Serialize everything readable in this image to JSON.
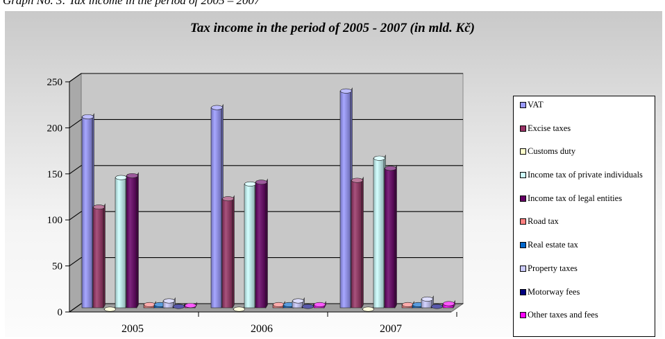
{
  "caption": "Graph No. 3: Tax income in the period of 2005 – 2007",
  "chart_data": {
    "type": "bar",
    "title": "Tax income in the period of 2005 - 2007 (in mld. Kč)",
    "xlabel": "",
    "ylabel": "",
    "ylim": [
      0,
      250
    ],
    "yticks": [
      "0",
      "50",
      "100",
      "150",
      "200",
      "250"
    ],
    "grid": true,
    "legend_position": "right",
    "categories": [
      "2005",
      "2006",
      "2007"
    ],
    "series": [
      {
        "name": "VAT",
        "color": "#9999ff",
        "values": [
          209,
          219,
          237
        ]
      },
      {
        "name": "Excise taxes",
        "color": "#993366",
        "values": [
          111,
          120,
          140
        ]
      },
      {
        "name": "Customs duty",
        "color": "#ffffcc",
        "values": [
          0,
          0,
          0
        ]
      },
      {
        "name": "Income tax of private individuals",
        "color": "#ccffff",
        "values": [
          143,
          136,
          164
        ]
      },
      {
        "name": "Income tax of legal entities",
        "color": "#660066",
        "values": [
          145,
          138,
          153
        ]
      },
      {
        "name": "Road tax",
        "color": "#ff8080",
        "values": [
          5,
          5,
          5
        ]
      },
      {
        "name": "Real estate tax",
        "color": "#0066cc",
        "values": [
          5,
          5,
          5
        ]
      },
      {
        "name": "Property taxes",
        "color": "#ccccff",
        "values": [
          9,
          9,
          11
        ]
      },
      {
        "name": "Motorway fees",
        "color": "#000080",
        "values": [
          3,
          3,
          3
        ]
      },
      {
        "name": "Other taxes and fees",
        "color": "#ff00ff",
        "values": [
          4,
          5,
          6
        ]
      }
    ]
  }
}
